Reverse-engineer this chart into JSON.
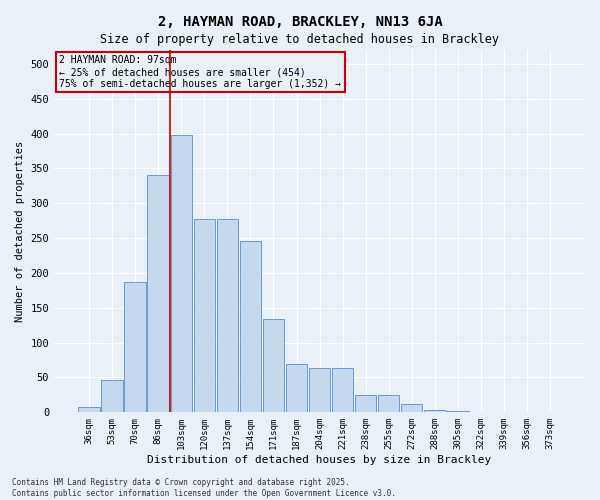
{
  "title": "2, HAYMAN ROAD, BRACKLEY, NN13 6JA",
  "subtitle": "Size of property relative to detached houses in Brackley",
  "xlabel": "Distribution of detached houses by size in Brackley",
  "ylabel": "Number of detached properties",
  "categories": [
    "36sqm",
    "53sqm",
    "70sqm",
    "86sqm",
    "103sqm",
    "120sqm",
    "137sqm",
    "154sqm",
    "171sqm",
    "187sqm",
    "204sqm",
    "221sqm",
    "238sqm",
    "255sqm",
    "272sqm",
    "288sqm",
    "305sqm",
    "322sqm",
    "339sqm",
    "356sqm",
    "373sqm"
  ],
  "values": [
    8,
    46,
    187,
    340,
    398,
    278,
    278,
    246,
    134,
    70,
    63,
    63,
    25,
    25,
    12,
    4,
    2,
    1,
    1,
    0,
    0
  ],
  "bar_color": "#c5d8ee",
  "bar_edge_color": "#5b8fc9",
  "bg_color": "#eaf0f8",
  "grid_color": "#ffffff",
  "vline_color": "#cc0000",
  "vline_x": 3.5,
  "annotation_text": "2 HAYMAN ROAD: 97sqm\n← 25% of detached houses are smaller (454)\n75% of semi-detached houses are larger (1,352) →",
  "annotation_box_color": "#cc0000",
  "footnote1": "Contains HM Land Registry data © Crown copyright and database right 2025.",
  "footnote2": "Contains public sector information licensed under the Open Government Licence v3.0.",
  "ylim": [
    0,
    520
  ],
  "yticks": [
    0,
    50,
    100,
    150,
    200,
    250,
    300,
    350,
    400,
    450,
    500
  ]
}
